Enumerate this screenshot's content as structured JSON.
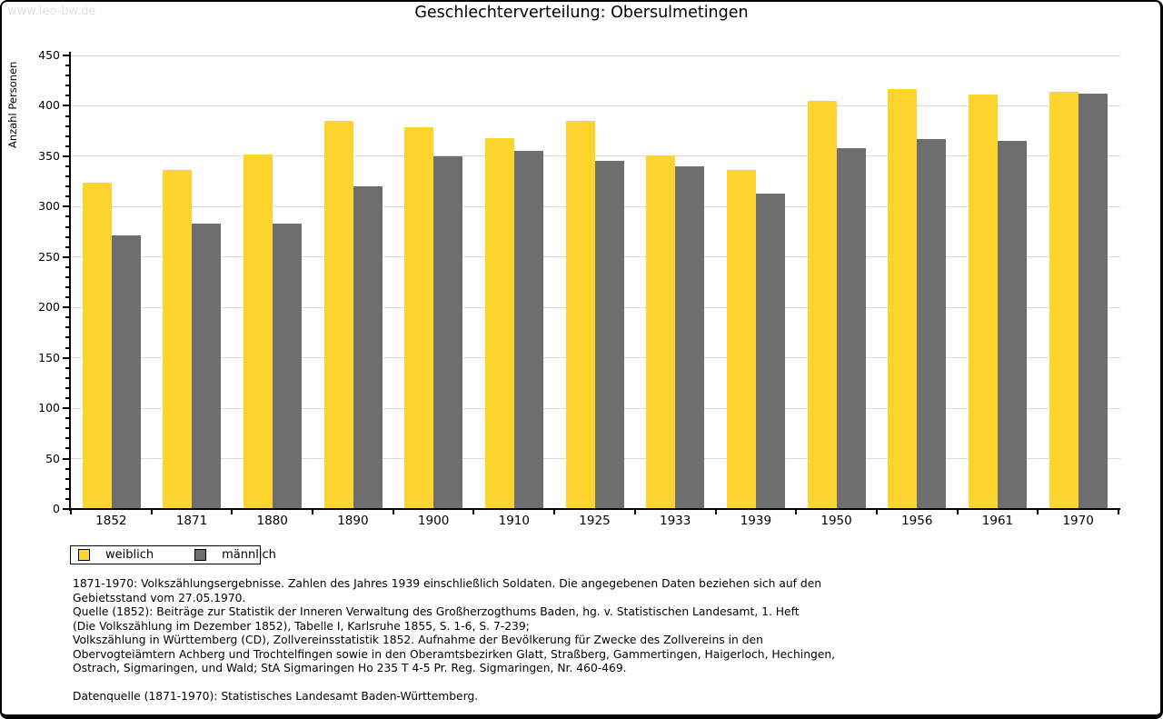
{
  "watermark": "www.leo-bw.de",
  "title": "Geschlechterverteilung: Obersulmetingen",
  "chart_data": {
    "type": "bar",
    "title": "Geschlechterverteilung: Obersulmetingen",
    "xlabel": "",
    "ylabel": "Anzahl Personen",
    "ylim": [
      0,
      450
    ],
    "ytick_step": 50,
    "ytick_minor_step": 10,
    "grid": true,
    "legend_position": "bottom-left",
    "categories": [
      "1852",
      "1871",
      "1880",
      "1890",
      "1900",
      "1910",
      "1925",
      "1933",
      "1939",
      "1950",
      "1956",
      "1961",
      "1970"
    ],
    "series": [
      {
        "name": "weiblich",
        "color": "#FCD42D",
        "values": [
          324,
          336,
          352,
          385,
          379,
          368,
          385,
          351,
          336,
          405,
          417,
          411,
          414
        ]
      },
      {
        "name": "männlich",
        "color": "#6E6E6E",
        "values": [
          271,
          283,
          283,
          320,
          350,
          355,
          345,
          340,
          313,
          358,
          367,
          365,
          412
        ]
      }
    ]
  },
  "colors": {
    "weiblich": "#FCD42D",
    "maennlich": "#6E6E6E",
    "gridline": "#dbdbdb",
    "axis": "#000000",
    "watermark": "#e2e2e2"
  },
  "footnotes": {
    "lines": [
      "1871-1970: Volkszählungsergebnisse. Zahlen des Jahres 1939 einschließlich Soldaten. Die angegebenen Daten beziehen sich auf den",
      "Gebietsstand vom 27.05.1970.",
      "Quelle (1852): Beiträge zur Statistik der Inneren Verwaltung des Großherzogthums Baden, hg. v. Statistischen Landesamt, 1. Heft",
      "(Die Volkszählung im Dezember 1852), Tabelle I, Karlsruhe 1855, S. 1-6, S. 7-239;",
      "Volkszählung in Württemberg (CD), Zollvereinsstatistik 1852. Aufnahme der Bevölkerung für Zwecke des Zollvereins in den",
      "Obervogteiämtern Achberg und Trochtelfingen sowie in den Oberamtsbezirken Glatt, Straßberg, Gammertingen, Haigerloch, Hechingen,",
      "Ostrach, Sigmaringen, und Wald; StA Sigmaringen Ho 235 T 4-5 Pr. Reg. Sigmaringen, Nr. 460-469."
    ],
    "datasource": "Datenquelle (1871-1970): Statistisches Landesamt Baden-Württemberg."
  }
}
